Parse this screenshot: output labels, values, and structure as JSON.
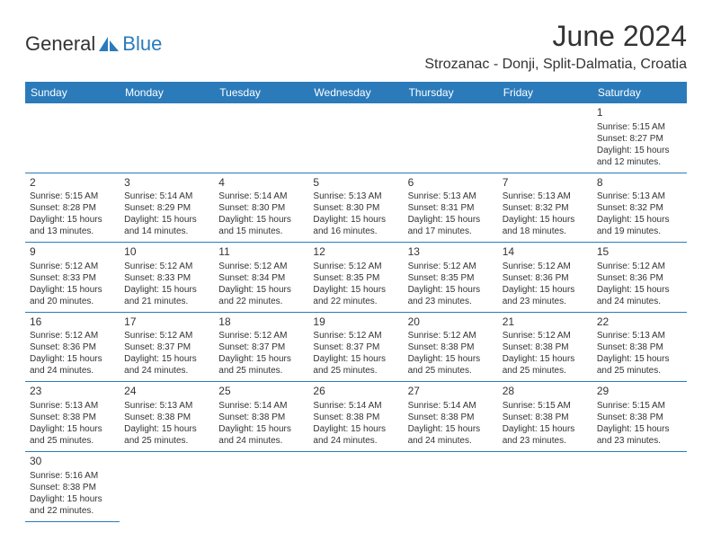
{
  "logo": {
    "part1": "General",
    "part2": "Blue"
  },
  "title": "June 2024",
  "location": "Strozanac - Donji, Split-Dalmatia, Croatia",
  "colors": {
    "accent": "#2b7bbb",
    "text": "#333333",
    "bg": "#ffffff"
  },
  "typography": {
    "title_fontsize": 32,
    "location_fontsize": 16,
    "header_fontsize": 12,
    "cell_fontsize": 10
  },
  "day_headers": [
    "Sunday",
    "Monday",
    "Tuesday",
    "Wednesday",
    "Thursday",
    "Friday",
    "Saturday"
  ],
  "weeks": [
    [
      null,
      null,
      null,
      null,
      null,
      null,
      {
        "n": "1",
        "sr": "Sunrise: 5:15 AM",
        "ss": "Sunset: 8:27 PM",
        "d1": "Daylight: 15 hours",
        "d2": "and 12 minutes."
      }
    ],
    [
      {
        "n": "2",
        "sr": "Sunrise: 5:15 AM",
        "ss": "Sunset: 8:28 PM",
        "d1": "Daylight: 15 hours",
        "d2": "and 13 minutes."
      },
      {
        "n": "3",
        "sr": "Sunrise: 5:14 AM",
        "ss": "Sunset: 8:29 PM",
        "d1": "Daylight: 15 hours",
        "d2": "and 14 minutes."
      },
      {
        "n": "4",
        "sr": "Sunrise: 5:14 AM",
        "ss": "Sunset: 8:30 PM",
        "d1": "Daylight: 15 hours",
        "d2": "and 15 minutes."
      },
      {
        "n": "5",
        "sr": "Sunrise: 5:13 AM",
        "ss": "Sunset: 8:30 PM",
        "d1": "Daylight: 15 hours",
        "d2": "and 16 minutes."
      },
      {
        "n": "6",
        "sr": "Sunrise: 5:13 AM",
        "ss": "Sunset: 8:31 PM",
        "d1": "Daylight: 15 hours",
        "d2": "and 17 minutes."
      },
      {
        "n": "7",
        "sr": "Sunrise: 5:13 AM",
        "ss": "Sunset: 8:32 PM",
        "d1": "Daylight: 15 hours",
        "d2": "and 18 minutes."
      },
      {
        "n": "8",
        "sr": "Sunrise: 5:13 AM",
        "ss": "Sunset: 8:32 PM",
        "d1": "Daylight: 15 hours",
        "d2": "and 19 minutes."
      }
    ],
    [
      {
        "n": "9",
        "sr": "Sunrise: 5:12 AM",
        "ss": "Sunset: 8:33 PM",
        "d1": "Daylight: 15 hours",
        "d2": "and 20 minutes."
      },
      {
        "n": "10",
        "sr": "Sunrise: 5:12 AM",
        "ss": "Sunset: 8:33 PM",
        "d1": "Daylight: 15 hours",
        "d2": "and 21 minutes."
      },
      {
        "n": "11",
        "sr": "Sunrise: 5:12 AM",
        "ss": "Sunset: 8:34 PM",
        "d1": "Daylight: 15 hours",
        "d2": "and 22 minutes."
      },
      {
        "n": "12",
        "sr": "Sunrise: 5:12 AM",
        "ss": "Sunset: 8:35 PM",
        "d1": "Daylight: 15 hours",
        "d2": "and 22 minutes."
      },
      {
        "n": "13",
        "sr": "Sunrise: 5:12 AM",
        "ss": "Sunset: 8:35 PM",
        "d1": "Daylight: 15 hours",
        "d2": "and 23 minutes."
      },
      {
        "n": "14",
        "sr": "Sunrise: 5:12 AM",
        "ss": "Sunset: 8:36 PM",
        "d1": "Daylight: 15 hours",
        "d2": "and 23 minutes."
      },
      {
        "n": "15",
        "sr": "Sunrise: 5:12 AM",
        "ss": "Sunset: 8:36 PM",
        "d1": "Daylight: 15 hours",
        "d2": "and 24 minutes."
      }
    ],
    [
      {
        "n": "16",
        "sr": "Sunrise: 5:12 AM",
        "ss": "Sunset: 8:36 PM",
        "d1": "Daylight: 15 hours",
        "d2": "and 24 minutes."
      },
      {
        "n": "17",
        "sr": "Sunrise: 5:12 AM",
        "ss": "Sunset: 8:37 PM",
        "d1": "Daylight: 15 hours",
        "d2": "and 24 minutes."
      },
      {
        "n": "18",
        "sr": "Sunrise: 5:12 AM",
        "ss": "Sunset: 8:37 PM",
        "d1": "Daylight: 15 hours",
        "d2": "and 25 minutes."
      },
      {
        "n": "19",
        "sr": "Sunrise: 5:12 AM",
        "ss": "Sunset: 8:37 PM",
        "d1": "Daylight: 15 hours",
        "d2": "and 25 minutes."
      },
      {
        "n": "20",
        "sr": "Sunrise: 5:12 AM",
        "ss": "Sunset: 8:38 PM",
        "d1": "Daylight: 15 hours",
        "d2": "and 25 minutes."
      },
      {
        "n": "21",
        "sr": "Sunrise: 5:12 AM",
        "ss": "Sunset: 8:38 PM",
        "d1": "Daylight: 15 hours",
        "d2": "and 25 minutes."
      },
      {
        "n": "22",
        "sr": "Sunrise: 5:13 AM",
        "ss": "Sunset: 8:38 PM",
        "d1": "Daylight: 15 hours",
        "d2": "and 25 minutes."
      }
    ],
    [
      {
        "n": "23",
        "sr": "Sunrise: 5:13 AM",
        "ss": "Sunset: 8:38 PM",
        "d1": "Daylight: 15 hours",
        "d2": "and 25 minutes."
      },
      {
        "n": "24",
        "sr": "Sunrise: 5:13 AM",
        "ss": "Sunset: 8:38 PM",
        "d1": "Daylight: 15 hours",
        "d2": "and 25 minutes."
      },
      {
        "n": "25",
        "sr": "Sunrise: 5:14 AM",
        "ss": "Sunset: 8:38 PM",
        "d1": "Daylight: 15 hours",
        "d2": "and 24 minutes."
      },
      {
        "n": "26",
        "sr": "Sunrise: 5:14 AM",
        "ss": "Sunset: 8:38 PM",
        "d1": "Daylight: 15 hours",
        "d2": "and 24 minutes."
      },
      {
        "n": "27",
        "sr": "Sunrise: 5:14 AM",
        "ss": "Sunset: 8:38 PM",
        "d1": "Daylight: 15 hours",
        "d2": "and 24 minutes."
      },
      {
        "n": "28",
        "sr": "Sunrise: 5:15 AM",
        "ss": "Sunset: 8:38 PM",
        "d1": "Daylight: 15 hours",
        "d2": "and 23 minutes."
      },
      {
        "n": "29",
        "sr": "Sunrise: 5:15 AM",
        "ss": "Sunset: 8:38 PM",
        "d1": "Daylight: 15 hours",
        "d2": "and 23 minutes."
      }
    ],
    [
      {
        "n": "30",
        "sr": "Sunrise: 5:16 AM",
        "ss": "Sunset: 8:38 PM",
        "d1": "Daylight: 15 hours",
        "d2": "and 22 minutes."
      },
      null,
      null,
      null,
      null,
      null,
      null
    ]
  ]
}
